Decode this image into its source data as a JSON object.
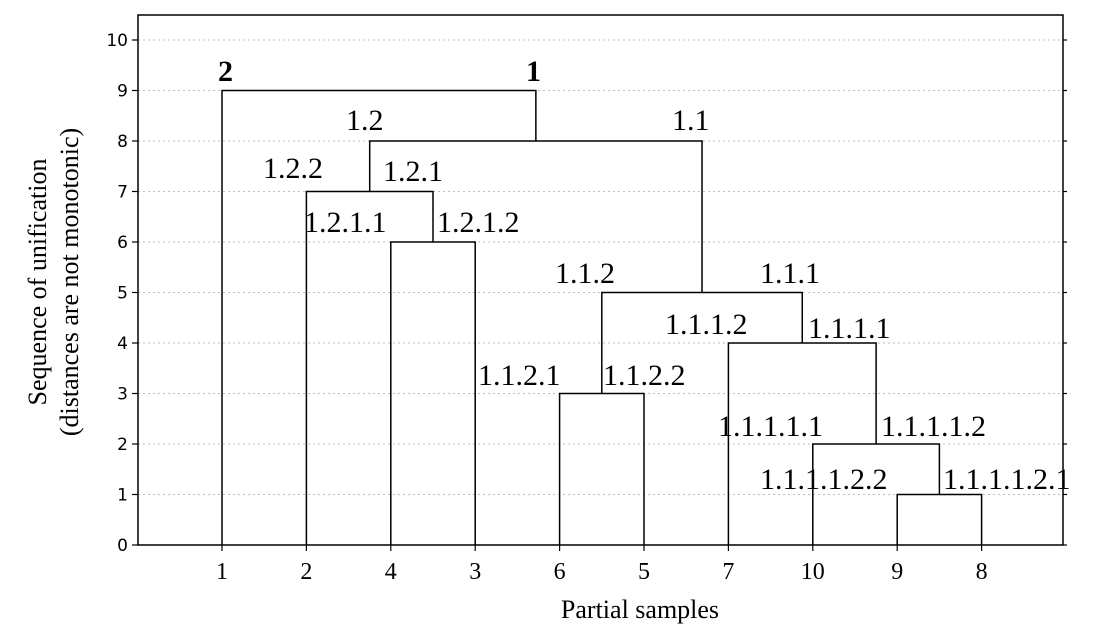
{
  "chart_data": {
    "type": "dendrogram",
    "xlabel": "Partial samples",
    "ylabel_lines": [
      "Sequence of unification",
      "(distances are not monotonic)"
    ],
    "ylim": [
      0,
      10.5
    ],
    "yticks": [
      "0",
      "1",
      "2",
      "3",
      "4",
      "5",
      "6",
      "7",
      "8",
      "9",
      "10"
    ],
    "grid": true,
    "leaves": [
      "1",
      "2",
      "4",
      "3",
      "6",
      "5",
      "7",
      "10",
      "9",
      "8"
    ],
    "merges": [
      {
        "a": "9",
        "b": "8",
        "height": 1
      },
      {
        "a": "10",
        "b": "9+8",
        "height": 2
      },
      {
        "a": "6",
        "b": "5",
        "height": 3
      },
      {
        "a": "7",
        "b": "10+9+8",
        "height": 4
      },
      {
        "a": "6+5",
        "b": "7+10+9+8",
        "height": 5
      },
      {
        "a": "4",
        "b": "3",
        "height": 6
      },
      {
        "a": "2",
        "b": "4+3",
        "height": 7
      },
      {
        "a": "2+4+3",
        "b": "6+5+7+10+9+8",
        "height": 8
      },
      {
        "a": "1",
        "b": "rest",
        "height": 9
      }
    ],
    "node_labels": [
      {
        "text": "2",
        "bold": true
      },
      {
        "text": "1",
        "bold": true
      },
      {
        "text": "1.2",
        "bold": false
      },
      {
        "text": "1.1",
        "bold": false
      },
      {
        "text": "1.2.2",
        "bold": false
      },
      {
        "text": "1.2.1",
        "bold": false
      },
      {
        "text": "1.2.1.1",
        "bold": false
      },
      {
        "text": "1.2.1.2",
        "bold": false
      },
      {
        "text": "1.1.2",
        "bold": false
      },
      {
        "text": "1.1.1",
        "bold": false
      },
      {
        "text": "1.1.1.2",
        "bold": false
      },
      {
        "text": "1.1.1.1",
        "bold": false
      },
      {
        "text": "1.1.2.1",
        "bold": false
      },
      {
        "text": "1.1.2.2",
        "bold": false
      },
      {
        "text": "1.1.1.1.1",
        "bold": false
      },
      {
        "text": "1.1.1.1.2",
        "bold": false
      },
      {
        "text": "1.1.1.1.2.2",
        "bold": false
      },
      {
        "text": "1.1.1.1.2.1",
        "bold": false
      }
    ]
  }
}
